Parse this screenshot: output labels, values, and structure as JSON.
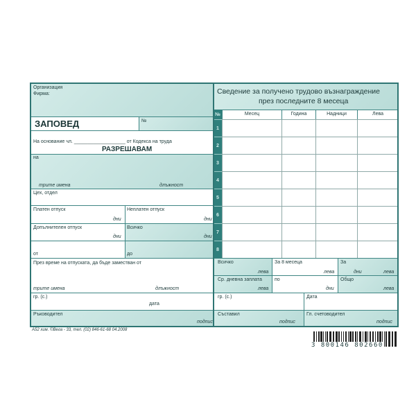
{
  "left": {
    "org": "Организация",
    "firm": "Фирма:",
    "title": "ЗАПОВЕД",
    "no": "№",
    "basis": "На основание чл. ___________________ от Кодекса на труда",
    "allow": "РАЗРЕШАВАМ",
    "na": "на",
    "names": "трите имена",
    "position": "длъжност",
    "dept": "Цех, отдел",
    "paid": "Платен отпуск",
    "unpaid": "Неплатен отпуск",
    "extra": "Допълнителен отпуск",
    "total": "Всичко",
    "days": "дни",
    "from": "от",
    "to": "до",
    "replace": "През време на отпуската, да бъде заместван от",
    "city": "гр. (с.)",
    "date": "дата",
    "head": "Ръководител",
    "sign": "подпис",
    "footer": "А52 хим. ©Вега - 33, тел. (02) 846-61-68  04.2008"
  },
  "right": {
    "title1": "Сведение за получено трудово възнаграждение",
    "title2": "през последните 8 месеца",
    "columns": [
      "№",
      "Месец",
      "Година",
      "Надници",
      "Лева"
    ],
    "rows": [
      "1",
      "2",
      "3",
      "4",
      "5",
      "6",
      "7",
      "8"
    ],
    "total": "Всичко",
    "for8": "За 8 месеца",
    "za": "За",
    "leva": "лева",
    "days": "дни",
    "avg": "Ср. дневна заплата",
    "po": "по",
    "overall": "Общо",
    "city": "гр. (с.)",
    "date": "Дата",
    "compiled": "Съставил",
    "accountant": "Гл. счетоводител",
    "sign": "подпис",
    "barcode": "3 800146 802660"
  }
}
